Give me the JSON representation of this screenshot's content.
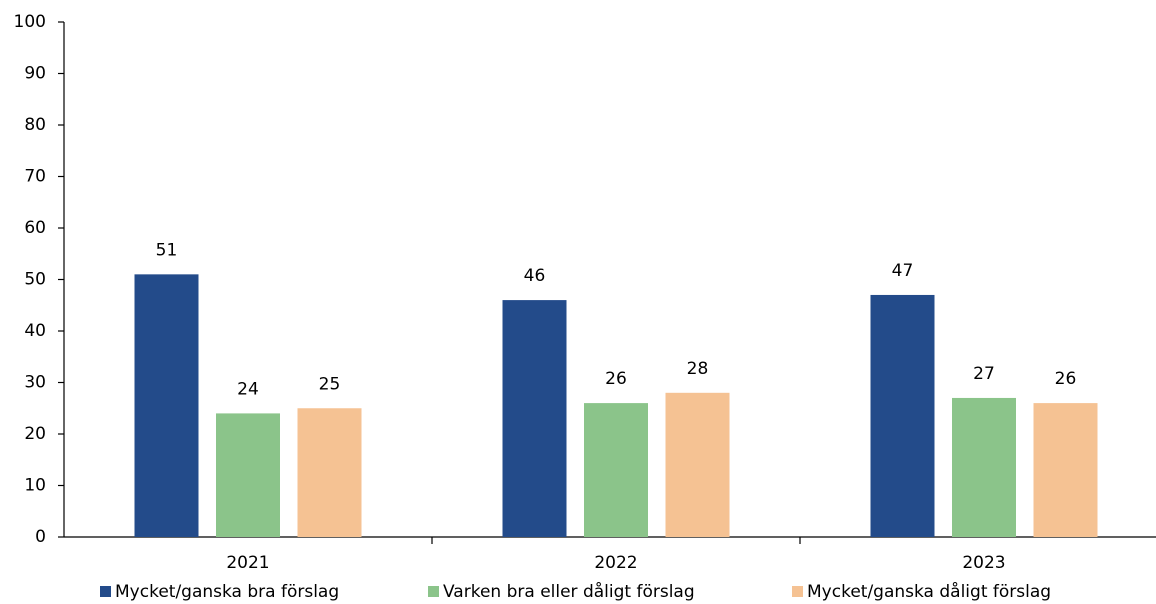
{
  "chart_data": {
    "type": "bar",
    "categories": [
      "2021",
      "2022",
      "2023"
    ],
    "series": [
      {
        "name": "Mycket/ganska bra förslag",
        "color": "#234b8a",
        "values": [
          51,
          46,
          47
        ]
      },
      {
        "name": "Varken bra eller dåligt förslag",
        "color": "#8bc48a",
        "values": [
          24,
          26,
          27
        ]
      },
      {
        "name": "Mycket/ganska dåligt förslag",
        "color": "#f5c293",
        "values": [
          25,
          28,
          26
        ]
      }
    ],
    "ylim": [
      0,
      100
    ],
    "yticks": [
      0,
      10,
      20,
      30,
      40,
      50,
      60,
      70,
      80,
      90,
      100
    ],
    "grid": false,
    "legend": "bottom"
  }
}
